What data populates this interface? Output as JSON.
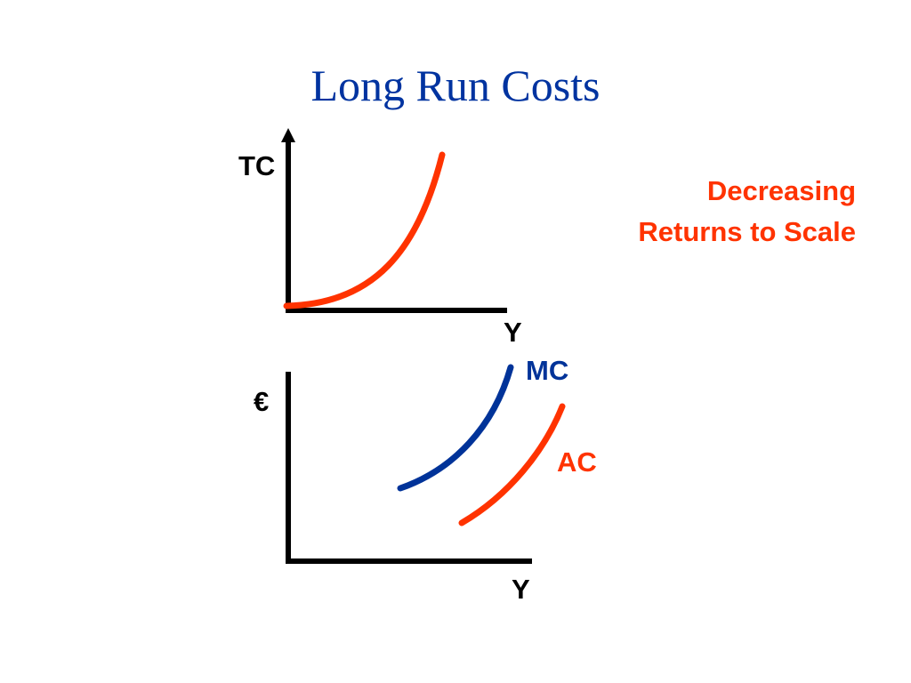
{
  "title": "Long Run Costs",
  "caption": {
    "line1": "Decreasing",
    "line2": "Returns to Scale"
  },
  "top_graph": {
    "y_axis_label": "TC",
    "x_axis_label": "Y",
    "curve_name": "TC"
  },
  "bottom_graph": {
    "y_axis_label": "€",
    "x_axis_label": "Y",
    "mc_label": "MC",
    "ac_label": "AC"
  },
  "colors": {
    "title": "#0033a0",
    "axis": "#000000",
    "tc_curve": "#ff3300",
    "mc_curve": "#003399",
    "ac_curve": "#ff3300",
    "caption": "#ff3300"
  }
}
